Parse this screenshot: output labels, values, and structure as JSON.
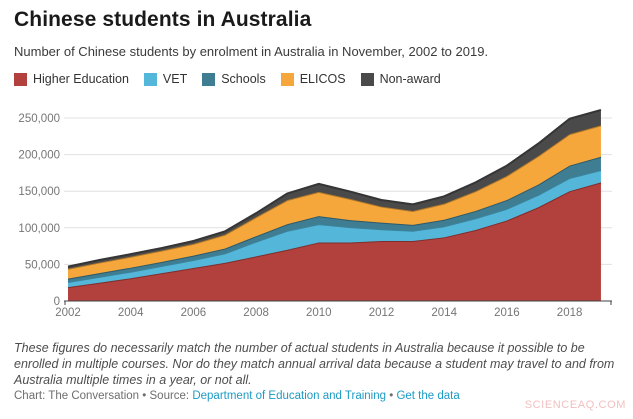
{
  "header": {
    "title": "Chinese students in Australia",
    "subtitle": "Number of Chinese students by enrolment in Australia in November, 2002 to 2019."
  },
  "legend": [
    {
      "label": "Higher Education",
      "color": "#b2403d"
    },
    {
      "label": "VET",
      "color": "#54b7d9"
    },
    {
      "label": "Schools",
      "color": "#3f7d93"
    },
    {
      "label": "ELICOS",
      "color": "#f5a73b"
    },
    {
      "label": "Non-award",
      "color": "#4a4a4a"
    }
  ],
  "chart_data": {
    "type": "area",
    "stacked": true,
    "title": "Chinese students in Australia",
    "subtitle": "Number of Chinese students by enrolment in Australia in November, 2002 to 2019.",
    "xlabel": "",
    "ylabel": "",
    "grid": true,
    "legend_position": "top",
    "xlim": [
      2002,
      2019
    ],
    "ylim": [
      0,
      250000
    ],
    "ytick_step": 50000,
    "ytick_labels": [
      "0",
      "50,000",
      "100,000",
      "150,000",
      "200,000",
      "250,000"
    ],
    "xtick_years": [
      2002,
      2004,
      2006,
      2008,
      2010,
      2012,
      2014,
      2016,
      2018
    ],
    "x": [
      2002,
      2003,
      2004,
      2005,
      2006,
      2007,
      2008,
      2009,
      2010,
      2011,
      2012,
      2013,
      2014,
      2015,
      2016,
      2017,
      2018,
      2019
    ],
    "series": [
      {
        "name": "Higher Education",
        "color": "#b2403d",
        "values": [
          19000,
          25000,
          31000,
          38000,
          45000,
          52000,
          61000,
          70000,
          80000,
          80000,
          82000,
          82000,
          87000,
          97000,
          110000,
          128000,
          150000,
          162000
        ]
      },
      {
        "name": "VET",
        "color": "#54b7d9",
        "values": [
          7000,
          8000,
          9000,
          10000,
          11000,
          13000,
          20000,
          26000,
          25000,
          21000,
          16000,
          14000,
          15000,
          16000,
          16000,
          17000,
          18000,
          17000
        ]
      },
      {
        "name": "Schools",
        "color": "#3f7d93",
        "values": [
          4500,
          5000,
          5500,
          5500,
          6000,
          6500,
          7500,
          9000,
          11000,
          9500,
          9000,
          8000,
          9000,
          10000,
          12000,
          14000,
          17000,
          18000
        ]
      },
      {
        "name": "ELICOS",
        "color": "#f5a73b",
        "values": [
          13500,
          14500,
          15000,
          15500,
          16000,
          19000,
          26000,
          33000,
          33000,
          29000,
          22000,
          19000,
          22000,
          27000,
          33000,
          39000,
          43000,
          43000
        ]
      },
      {
        "name": "Non-award",
        "color": "#4a4a4a",
        "values": [
          3000,
          3500,
          3500,
          3500,
          4000,
          4500,
          5500,
          9000,
          11000,
          10000,
          9000,
          9000,
          10000,
          12000,
          14000,
          17000,
          21000,
          21000
        ]
      }
    ]
  },
  "footer": {
    "note": "These figures do necessarily match the number of actual students in Australia because it possible to be enrolled in multiple courses. Nor do they match annual arrival data because a student may travel to and from Australia multiple times in a year, or not all.",
    "credit_prefix": "Chart: The Conversation",
    "separator": " • ",
    "source_label": "Source: ",
    "source_link": "Department of Education and Training",
    "data_link": "Get the data",
    "link_color": "#1d9bc4"
  },
  "watermark": "SCIENCEAQ.COM"
}
